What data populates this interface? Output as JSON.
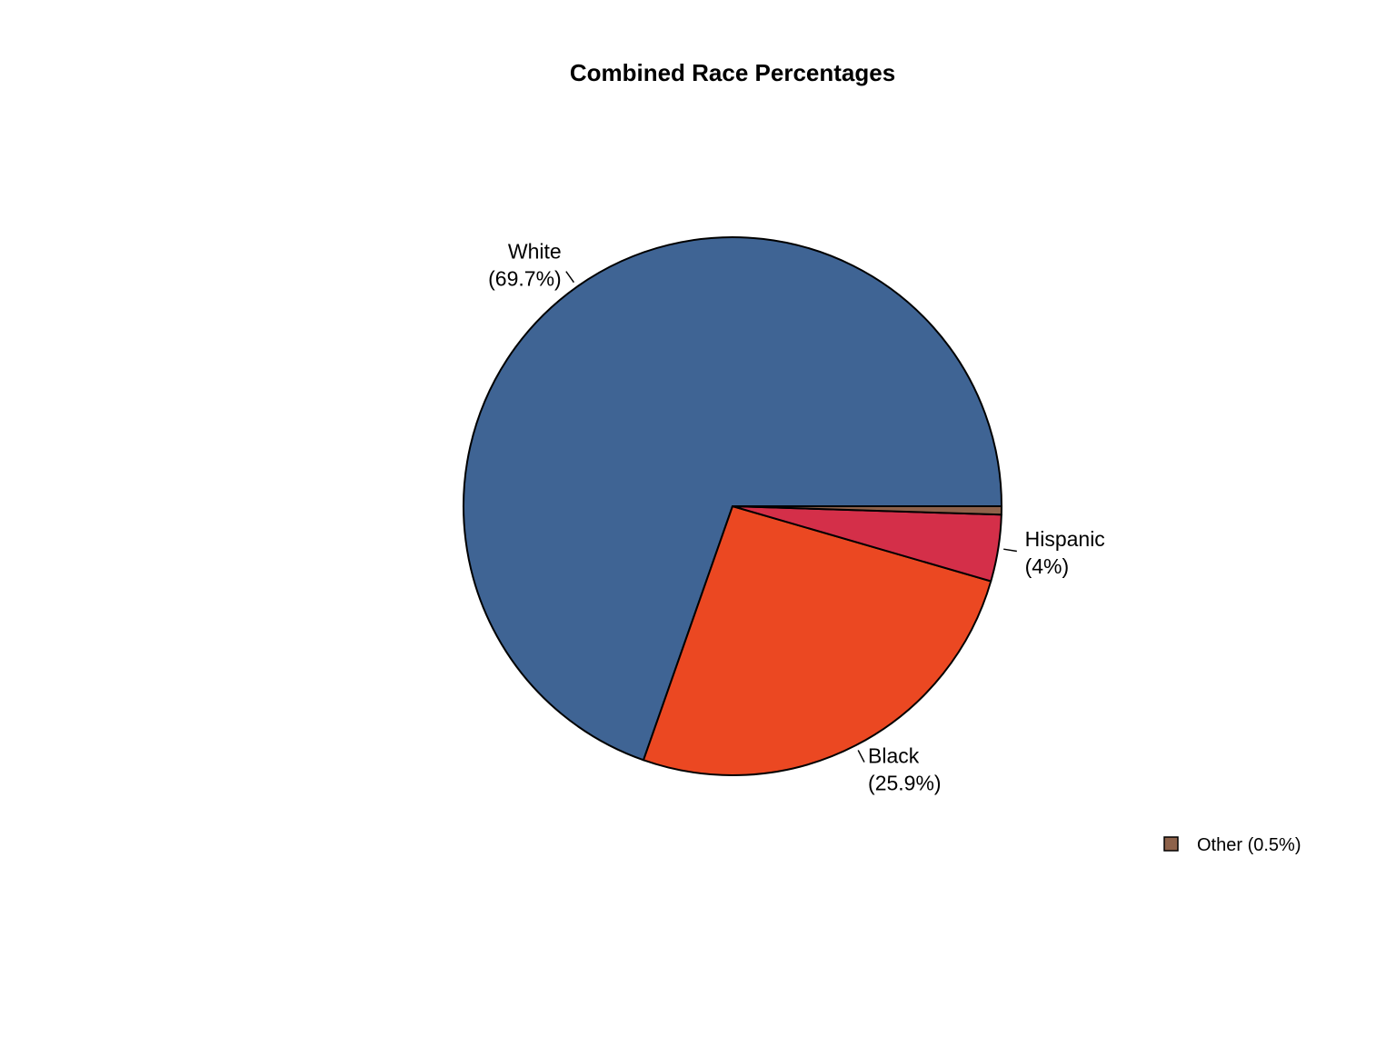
{
  "chart_data": {
    "type": "pie",
    "title": "Combined Race Percentages",
    "slices": [
      {
        "name": "White",
        "value": 69.7,
        "label_lines": [
          "White",
          "(69.7%)"
        ],
        "color": "#3F6494"
      },
      {
        "name": "Black",
        "value": 25.9,
        "label_lines": [
          "Black",
          "(25.9%)"
        ],
        "color": "#EB4822"
      },
      {
        "name": "Hispanic",
        "value": 4.0,
        "label_lines": [
          "Hispanic",
          "(4%)"
        ],
        "color": "#D42F49"
      },
      {
        "name": "Other",
        "value": 0.5,
        "label_lines": [],
        "color": "#8E624A"
      }
    ],
    "start_angle_degrees": 0,
    "direction": "counterclockwise",
    "legend": {
      "placement": "bottom-right",
      "entries": [
        {
          "label": "Other (0.5%)",
          "color": "#8E624A"
        }
      ]
    }
  }
}
